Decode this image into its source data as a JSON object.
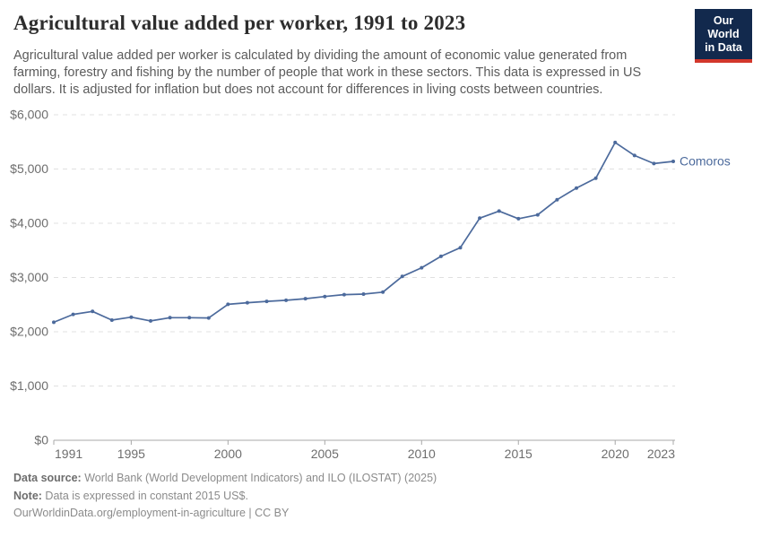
{
  "header": {
    "title": "Agricultural value added per worker, 1991 to 2023",
    "subtitle": "Agricultural value added per worker is calculated by dividing the amount of economic value generated from farming, forestry and fishing by the number of people that work in these sectors. This data is expressed in US dollars. It is adjusted for inflation but does not account for differences in living costs between countries.",
    "logo": {
      "line1": "Our World",
      "line2": "in Data",
      "bg_color": "#12294d",
      "accent_color": "#d2372c"
    }
  },
  "chart_data": {
    "type": "line",
    "title": "Agricultural value added per worker, 1991 to 2023",
    "xlabel": "",
    "ylabel": "",
    "xlim": [
      1991,
      2023
    ],
    "ylim": [
      0,
      6000
    ],
    "grid": "horizontal-dashed",
    "legend_position": "end-of-line-label",
    "x_ticks": [
      1991,
      1995,
      2000,
      2005,
      2010,
      2015,
      2020,
      2023
    ],
    "y_ticks": [
      0,
      1000,
      2000,
      3000,
      4000,
      5000,
      6000
    ],
    "y_tick_labels": [
      "$0",
      "$1,000",
      "$2,000",
      "$3,000",
      "$4,000",
      "$5,000",
      "$6,000"
    ],
    "series": [
      {
        "name": "Comoros",
        "color": "#4C6A9C",
        "x": [
          1991,
          1992,
          1993,
          1994,
          1995,
          1996,
          1997,
          1998,
          1999,
          2000,
          2001,
          2002,
          2003,
          2004,
          2005,
          2006,
          2007,
          2008,
          2009,
          2010,
          2011,
          2012,
          2013,
          2014,
          2015,
          2016,
          2017,
          2018,
          2019,
          2020,
          2021,
          2022,
          2023
        ],
        "values": [
          2175,
          2320,
          2375,
          2215,
          2270,
          2200,
          2260,
          2260,
          2255,
          2505,
          2535,
          2560,
          2580,
          2610,
          2650,
          2685,
          2695,
          2730,
          3020,
          3180,
          3390,
          3550,
          4095,
          4225,
          4085,
          4155,
          4435,
          4650,
          4830,
          5490,
          5250,
          5100,
          5140
        ]
      }
    ],
    "colors": {
      "grid": "#e0e0e0",
      "zero_axis": "#a8a8a8",
      "tick_text": "#6e6e6e"
    }
  },
  "footer": {
    "source_label": "Data source:",
    "source_text": " World Bank (World Development Indicators) and ILO (ILOSTAT) (2025)",
    "note_label": "Note:",
    "note_text": " Data is expressed in constant 2015 US$.",
    "citation": "OurWorldinData.org/employment-in-agriculture | CC BY"
  }
}
